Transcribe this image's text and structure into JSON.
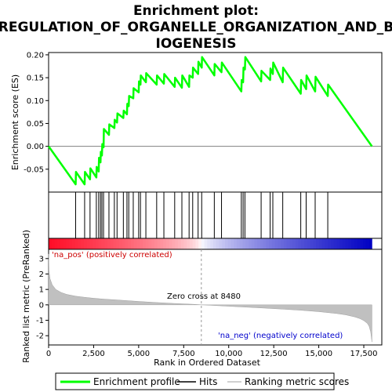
{
  "title_line1": "Enrichment plot:",
  "title_line2": "REGULATION_OF_ORGANELLE_ORGANIZATION_AND_B",
  "title_line3": "IOGENESIS",
  "colors": {
    "es_line": "#00ff00",
    "hits": "#000000",
    "metric_fill": "#c0c0c0",
    "zero_line": "#808080",
    "pos_label": "#cc0000",
    "neg_label": "#0000cc"
  },
  "chart_data": [
    {
      "type": "line",
      "panel": "enrichment",
      "ylabel": "Enrichment score (ES)",
      "xlim": [
        0,
        18500
      ],
      "ylim": [
        -0.1,
        0.205
      ],
      "yticks": [
        -0.05,
        0.0,
        0.05,
        0.1,
        0.15,
        0.2
      ],
      "ytick_labels": [
        "-0.05",
        "0.00",
        "0.05",
        "0.10",
        "0.15",
        "0.20"
      ],
      "series": [
        {
          "name": "Enrichment profile",
          "x": [
            0,
            1500,
            1520,
            2000,
            2020,
            2300,
            2320,
            2650,
            2670,
            2780,
            2800,
            2880,
            2900,
            2960,
            2980,
            3050,
            3070,
            3350,
            3370,
            3650,
            3670,
            3800,
            3820,
            4150,
            4170,
            4350,
            4370,
            4450,
            4470,
            4700,
            4720,
            5000,
            5020,
            5100,
            5120,
            5400,
            5420,
            6000,
            6020,
            6400,
            6420,
            7000,
            7020,
            7400,
            7420,
            7800,
            7820,
            8000,
            8020,
            8300,
            8320,
            8500,
            8520,
            9200,
            9220,
            9600,
            9620,
            10700,
            10720,
            10800,
            10820,
            10900,
            10920,
            11800,
            11820,
            12300,
            12320,
            12450,
            12470,
            13000,
            13020,
            14000,
            14020,
            14300,
            14320,
            14800,
            14820,
            15500,
            15520,
            17950
          ],
          "y": [
            0.0,
            -0.083,
            -0.056,
            -0.083,
            -0.056,
            -0.072,
            -0.048,
            -0.068,
            -0.045,
            -0.055,
            -0.025,
            -0.035,
            -0.012,
            -0.02,
            0.005,
            -0.002,
            0.038,
            0.025,
            0.048,
            0.04,
            0.058,
            0.052,
            0.072,
            0.062,
            0.078,
            0.07,
            0.093,
            0.088,
            0.11,
            0.105,
            0.127,
            0.118,
            0.142,
            0.135,
            0.155,
            0.14,
            0.16,
            0.135,
            0.155,
            0.137,
            0.158,
            0.13,
            0.15,
            0.128,
            0.155,
            0.13,
            0.155,
            0.15,
            0.172,
            0.158,
            0.185,
            0.172,
            0.195,
            0.155,
            0.18,
            0.162,
            0.183,
            0.12,
            0.145,
            0.14,
            0.172,
            0.168,
            0.195,
            0.142,
            0.165,
            0.145,
            0.17,
            0.158,
            0.183,
            0.14,
            0.172,
            0.115,
            0.145,
            0.125,
            0.155,
            0.12,
            0.152,
            0.11,
            0.135,
            0.0
          ]
        }
      ]
    },
    {
      "type": "scatter",
      "panel": "hits",
      "series": [
        {
          "name": "Hits",
          "x": [
            1500,
            2000,
            2300,
            2650,
            2780,
            2880,
            2960,
            3050,
            3350,
            3650,
            3800,
            4150,
            4350,
            4450,
            4700,
            5000,
            5100,
            5400,
            6000,
            6400,
            7000,
            7400,
            7800,
            8000,
            8300,
            8500,
            9200,
            9600,
            10700,
            10800,
            10900,
            11800,
            12300,
            12450,
            13000,
            14000,
            14300,
            14800,
            15500
          ]
        }
      ]
    },
    {
      "type": "heatmap",
      "panel": "ranked-list-colorbar",
      "x_range": [
        0,
        17950
      ]
    },
    {
      "type": "area",
      "panel": "ranked-list-metric",
      "xlabel": "Rank in Ordered Dataset",
      "ylabel": "Ranked list metric (PreRanked)",
      "xlim": [
        0,
        18500
      ],
      "ylim": [
        -2.6,
        3.6
      ],
      "xticks": [
        0,
        2500,
        5000,
        7500,
        10000,
        12500,
        15000,
        17500
      ],
      "xtick_labels": [
        "0",
        "2,500",
        "5,000",
        "7,500",
        "10,000",
        "12,500",
        "15,000",
        "17,500"
      ],
      "yticks": [
        -2,
        -1,
        0,
        1,
        2,
        3
      ],
      "ytick_labels": [
        "-2",
        "-1",
        "0",
        "1",
        "2",
        "3"
      ],
      "series": [
        {
          "name": "Ranking metric scores",
          "x": [
            0,
            20,
            80,
            200,
            400,
            700,
            1000,
            1500,
            2000,
            2500,
            3000,
            4000,
            5000,
            6000,
            7000,
            8000,
            8480,
            9000,
            10000,
            11000,
            12000,
            13000,
            14000,
            15000,
            16000,
            16500,
            17000,
            17300,
            17500,
            17700,
            17800,
            17880,
            17920,
            17950
          ],
          "y": [
            3.3,
            2.2,
            1.7,
            1.3,
            1.0,
            0.8,
            0.68,
            0.56,
            0.49,
            0.43,
            0.38,
            0.3,
            0.22,
            0.15,
            0.09,
            0.04,
            0.0,
            -0.03,
            -0.09,
            -0.15,
            -0.21,
            -0.28,
            -0.35,
            -0.44,
            -0.56,
            -0.65,
            -0.78,
            -0.9,
            -1.02,
            -1.2,
            -1.4,
            -1.75,
            -2.1,
            -2.4
          ]
        }
      ]
    }
  ],
  "annotations": {
    "pos_label": "'na_pos' (positively correlated)",
    "neg_label": "'na_neg' (negatively correlated)",
    "zero_cross": "Zero cross at 8480",
    "zero_cross_rank": 8480
  },
  "legend": {
    "items": [
      {
        "label": "Enrichment profile",
        "color": "#00ff00"
      },
      {
        "label": "Hits",
        "color": "#000000"
      },
      {
        "label": "Ranking metric scores",
        "color": "#c0c0c0"
      }
    ]
  }
}
